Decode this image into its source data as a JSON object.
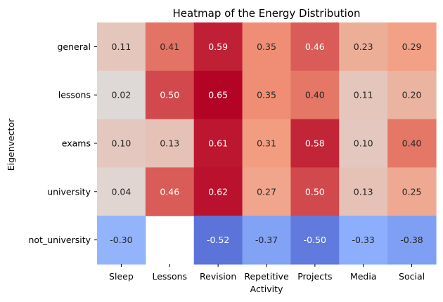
{
  "chart_data": {
    "type": "heatmap",
    "title": "Heatmap of the Energy Distribution",
    "xlabel": "Activity",
    "ylabel": "Eigenvector",
    "columns": [
      "Sleep",
      "Lessons",
      "Revision",
      "Repetitive",
      "Projects",
      "Media",
      "Social"
    ],
    "rows": [
      "general",
      "lessons",
      "exams",
      "university",
      "not_university"
    ],
    "values": [
      [
        0.11,
        0.41,
        0.59,
        0.35,
        0.46,
        0.23,
        0.29
      ],
      [
        0.02,
        0.5,
        0.65,
        0.35,
        0.4,
        0.11,
        0.2
      ],
      [
        0.1,
        0.13,
        0.61,
        0.31,
        0.58,
        0.1,
        0.4
      ],
      [
        0.04,
        0.46,
        0.62,
        0.27,
        0.5,
        0.13,
        0.25
      ],
      [
        -0.3,
        null,
        -0.52,
        -0.37,
        -0.5,
        -0.33,
        -0.38
      ]
    ],
    "value_format": "0.00",
    "colormap": "coolwarm",
    "vmin": -0.65,
    "vmax": 0.65,
    "colorbar": false,
    "grid": false
  }
}
